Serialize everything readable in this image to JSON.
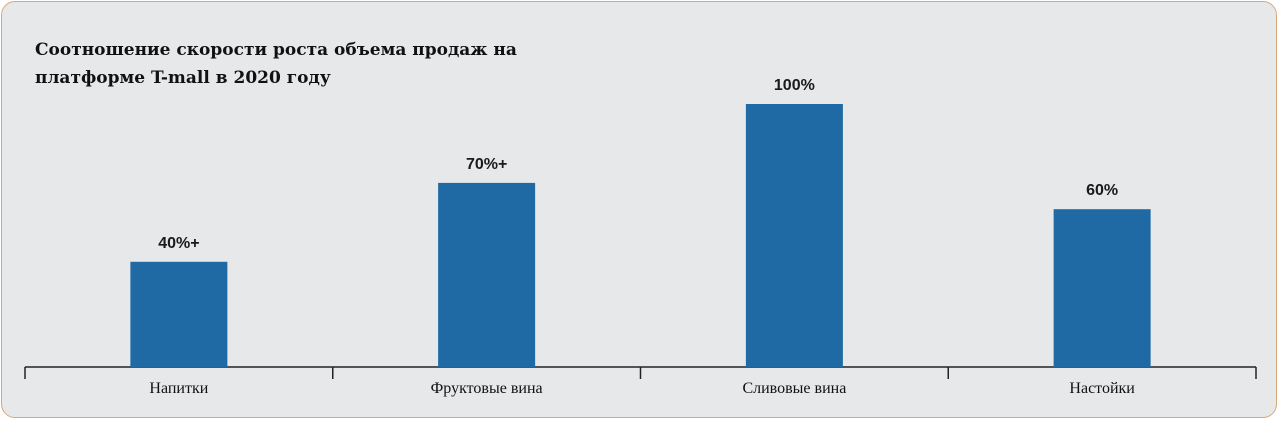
{
  "chart_data": {
    "type": "bar",
    "title_lines": [
      "Соотношение скорости роста объема продаж на",
      "платформе T-mall в 2020 году"
    ],
    "categories": [
      "Напитки",
      "Фруктовые вина",
      "Сливовые вина",
      "Настойки"
    ],
    "values": [
      40,
      70,
      100,
      60
    ],
    "value_labels": [
      "40%+",
      "70%+",
      "100%",
      "60%"
    ],
    "ylim": [
      0,
      100
    ],
    "grid": false,
    "bar_color": "#1f69a4"
  }
}
